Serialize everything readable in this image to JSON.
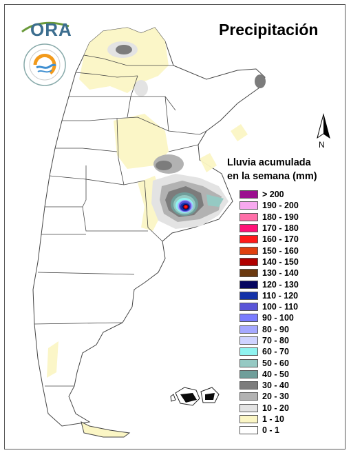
{
  "title": "Precipitación",
  "logo": {
    "text": "ORA"
  },
  "north_label": "N",
  "legend": {
    "title_line1": "Lluvia acumulada",
    "title_line2": "en la semana (mm)",
    "items": [
      {
        "label": "> 200",
        "color": "#9b0f8f"
      },
      {
        "label": "190 - 200",
        "color": "#f7a8ef"
      },
      {
        "label": "180 - 190",
        "color": "#ff6fa8"
      },
      {
        "label": "170 - 180",
        "color": "#ff1177"
      },
      {
        "label": "160 - 170",
        "color": "#ff1a1a"
      },
      {
        "label": "150 - 160",
        "color": "#e04010"
      },
      {
        "label": "140 - 150",
        "color": "#b00000"
      },
      {
        "label": "130 - 140",
        "color": "#6b3a10"
      },
      {
        "label": "120 - 130",
        "color": "#05055f"
      },
      {
        "label": "110 - 120",
        "color": "#1432a8"
      },
      {
        "label": "100 - 110",
        "color": "#5a55d8"
      },
      {
        "label": "90 - 100",
        "color": "#7a7cff"
      },
      {
        "label": "80 - 90",
        "color": "#a5a8ff"
      },
      {
        "label": "70 - 80",
        "color": "#cfd3ff"
      },
      {
        "label": "60 - 70",
        "color": "#8ff3f0"
      },
      {
        "label": "50 - 60",
        "color": "#95c9c3"
      },
      {
        "label": "40 - 50",
        "color": "#6f9e9a"
      },
      {
        "label": "30 - 40",
        "color": "#7c7c7c"
      },
      {
        "label": "20 - 30",
        "color": "#b2b2b2"
      },
      {
        "label": "10 - 20",
        "color": "#e3e3e3"
      },
      {
        "label": "1 - 10",
        "color": "#fbf6c5"
      },
      {
        "label": "0 - 1",
        "color": "#ffffff"
      }
    ]
  }
}
